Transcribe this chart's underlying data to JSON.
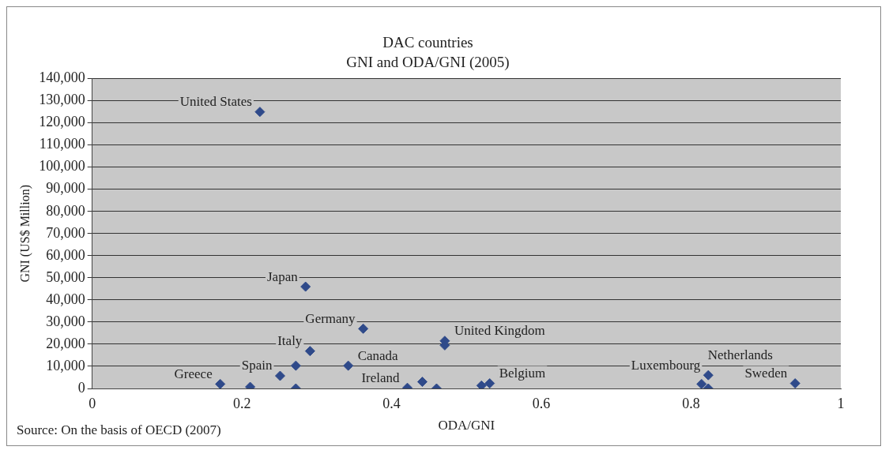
{
  "chart_data": {
    "type": "scatter",
    "title": "DAC countries",
    "subtitle": "GNI and ODA/GNI (2005)",
    "xlabel": "ODA/GNI",
    "ylabel": "GNI (US$ Million)",
    "series": [
      {
        "color": "#2f4a8a",
        "x": [
          0.224,
          0.285,
          0.362,
          0.471,
          0.471,
          0.171,
          0.211,
          0.251,
          0.272,
          0.272,
          0.291,
          0.342,
          0.421,
          0.441,
          0.46,
          0.52,
          0.531,
          0.814,
          0.823,
          0.823,
          0.939
        ],
        "values": [
          125000,
          46000,
          27000,
          21500,
          19500,
          2000,
          700,
          5700,
          10300,
          0,
          16900,
          10300,
          300,
          3000,
          0,
          1300,
          2300,
          2000,
          6000,
          0,
          2300
        ]
      }
    ],
    "xlim": [
      0,
      1
    ],
    "xticks": [
      0,
      0.2,
      0.4,
      0.6,
      0.8,
      1
    ],
    "ylim": [
      0,
      140000
    ],
    "yticks": [
      {
        "value": 0,
        "label": "0"
      },
      {
        "value": 10000,
        "label": "10,000"
      },
      {
        "value": 20000,
        "label": "20,000"
      },
      {
        "value": 30000,
        "label": "30,000"
      },
      {
        "value": 40000,
        "label": "40,000"
      },
      {
        "value": 50000,
        "label": "50,000"
      },
      {
        "value": 60000,
        "label": "60,000"
      },
      {
        "value": 70000,
        "label": "70,000"
      },
      {
        "value": 80000,
        "label": "80,000"
      },
      {
        "value": 90000,
        "label": "90,000"
      },
      {
        "value": 100000,
        "label": "100,000"
      },
      {
        "value": 110000,
        "label": "110,000"
      },
      {
        "value": 120000,
        "label": "120,000"
      },
      {
        "value": 130000,
        "label": "130,000"
      },
      {
        "value": 140000,
        "label": "140,000"
      }
    ],
    "grid": "y",
    "marker": "diamond",
    "legend": false,
    "annotations": [
      {
        "text": "United States",
        "x": 0.224,
        "y": 125000
      },
      {
        "text": "Japan",
        "x": 0.285,
        "y": 46000
      },
      {
        "text": "Germany",
        "x": 0.362,
        "y": 27000
      },
      {
        "text": "Italy",
        "x": 0.291,
        "y": 16900
      },
      {
        "text": "United Kingdom",
        "x": 0.471,
        "y": 21500
      },
      {
        "text": "Spain",
        "x": 0.251,
        "y": 5700
      },
      {
        "text": "Canada",
        "x": 0.342,
        "y": 10300
      },
      {
        "text": "Belgium",
        "x": 0.531,
        "y": 2300
      },
      {
        "text": "Luxembourg",
        "x": 0.823,
        "y": 6000
      },
      {
        "text": "Sweden",
        "x": 0.939,
        "y": 2300
      },
      {
        "text": "Greece",
        "x": 0.171,
        "y": 2000
      },
      {
        "text": "Ireland",
        "x": 0.421,
        "y": 300
      },
      {
        "text": "Netherlands",
        "x": 0.814,
        "y": 2000
      },
      "Source: On the basis of OECD (2007)"
    ]
  }
}
